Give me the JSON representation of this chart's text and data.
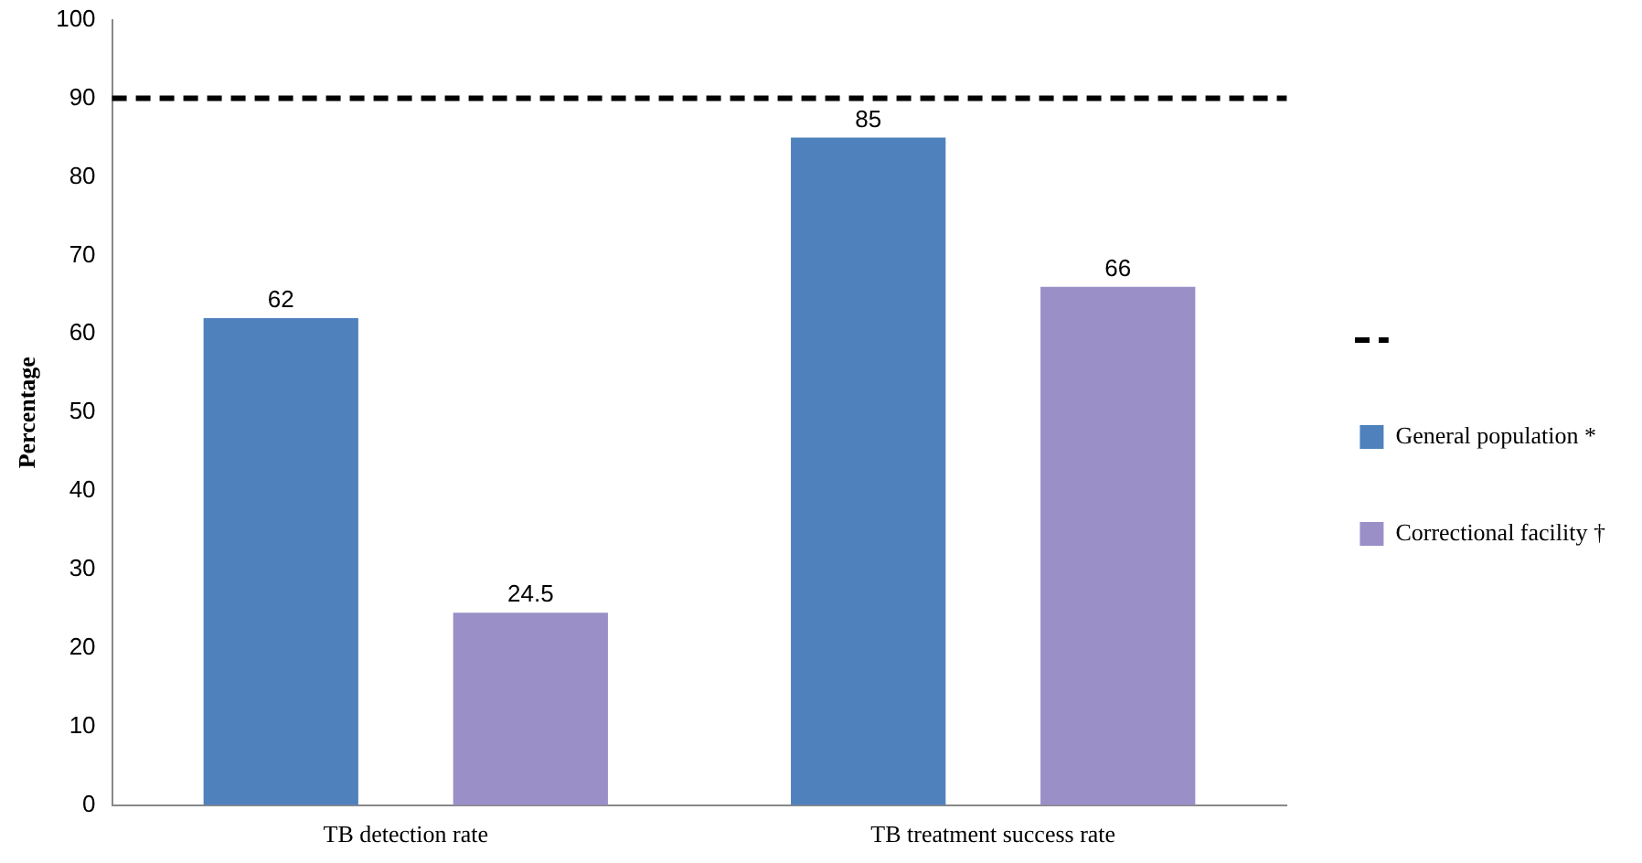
{
  "chart_data": {
    "type": "bar",
    "ylabel": "Percentage",
    "categories": [
      "TB detection rate",
      "TB treatment success rate"
    ],
    "series": [
      {
        "name": "General population *",
        "color": "#4f81bd",
        "values": [
          62,
          85
        ]
      },
      {
        "name": "Correctional facility †",
        "color": "#9b8fc8",
        "values": [
          24.5,
          66
        ]
      }
    ],
    "ylim": [
      0,
      100
    ],
    "yticks": [
      0,
      10,
      20,
      30,
      40,
      50,
      60,
      70,
      80,
      90,
      100
    ],
    "grid": false,
    "legend": "right",
    "data_labels": true,
    "ref_lines": [
      {
        "axis": "y",
        "value": 90,
        "color": "#000000",
        "line_style": "dashed"
      }
    ]
  }
}
